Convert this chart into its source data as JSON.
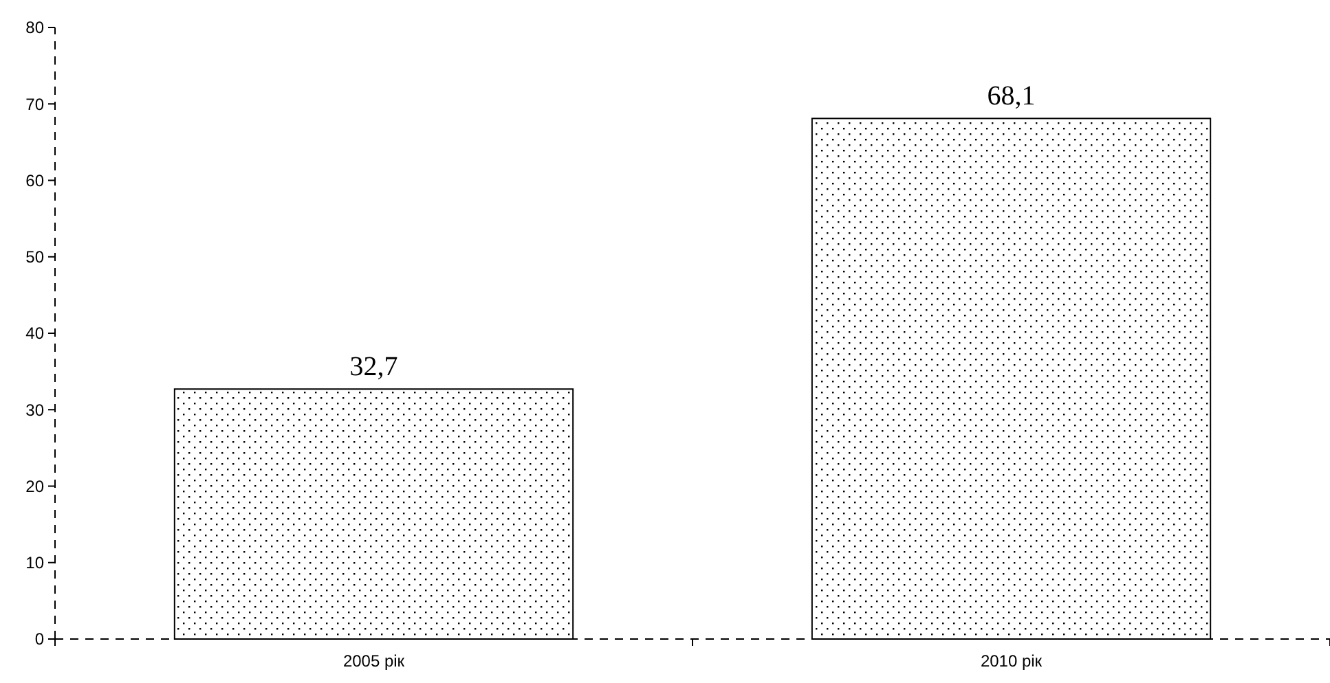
{
  "chart_data": {
    "type": "bar",
    "categories": [
      "2005 рік",
      "2010 рік"
    ],
    "values": [
      32.7,
      68.1
    ],
    "value_labels": [
      "32,7",
      "68,1"
    ],
    "color": "#000000",
    "ylim": [
      0,
      80
    ],
    "yticks": [
      0,
      10,
      20,
      30,
      40,
      50,
      60,
      70,
      80
    ],
    "grid": false
  }
}
